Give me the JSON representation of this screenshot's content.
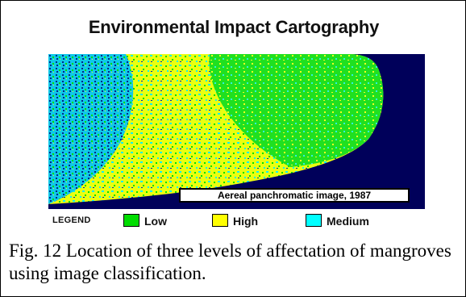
{
  "figure": {
    "title": "Environmental Impact Cartography",
    "map_caption": "Aereal panchromatic image, 1987",
    "caption": "Fig. 12 Location of three levels of affectation of mangroves using image classification."
  },
  "legend": {
    "title": "LEGEND",
    "items": [
      {
        "label": "Low",
        "color": "#00dd00"
      },
      {
        "label": "High",
        "color": "#ffff00"
      },
      {
        "label": "Medium",
        "color": "#00ffff"
      }
    ]
  },
  "map": {
    "background_color": "#00005a",
    "dark_color": "#002080",
    "classes": [
      "Low",
      "High",
      "Medium"
    ]
  }
}
